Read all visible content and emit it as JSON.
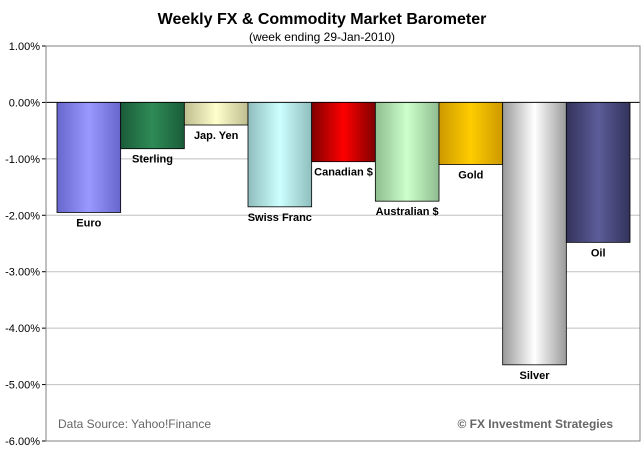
{
  "chart_data": {
    "type": "bar",
    "title": "Weekly FX & Commodity Market Barometer",
    "subtitle": "(week ending 29-Jan-2010)",
    "categories": [
      "Euro",
      "Sterling",
      "Jap. Yen",
      "Swiss Franc",
      "Canadian $",
      "Australian $",
      "Gold",
      "Silver",
      "Oil"
    ],
    "values": [
      -1.95,
      -0.82,
      -0.4,
      -1.85,
      -1.05,
      -1.75,
      -1.1,
      -4.65,
      -2.48
    ],
    "ylim": [
      -6.0,
      1.0
    ],
    "yticks": [
      1.0,
      0.0,
      -1.0,
      -2.0,
      -3.0,
      -4.0,
      -5.0,
      -6.0
    ],
    "ytick_labels": [
      "1.00%",
      "0.00%",
      "-1.00%",
      "-2.00%",
      "-3.00%",
      "-4.00%",
      "-5.00%",
      "-6.00%"
    ],
    "grid": true,
    "bar_colors": [
      "#9999ff",
      "#2e8b57",
      "#ffffcc",
      "#ccffff",
      "#ff0000",
      "#ccffcc",
      "#ffcc00",
      "#ffffff",
      "#5c5c99"
    ],
    "bar_edge_colors": [
      "#6666cc",
      "#1a5c38",
      "#bdbd8f",
      "#8fbdbd",
      "#800000",
      "#8fbd8f",
      "#cc9900",
      "#9a9a9a",
      "#33335c"
    ],
    "notes": {
      "source": "Data Source: Yahoo!Finance",
      "credit": "© FX Investment Strategies"
    }
  }
}
